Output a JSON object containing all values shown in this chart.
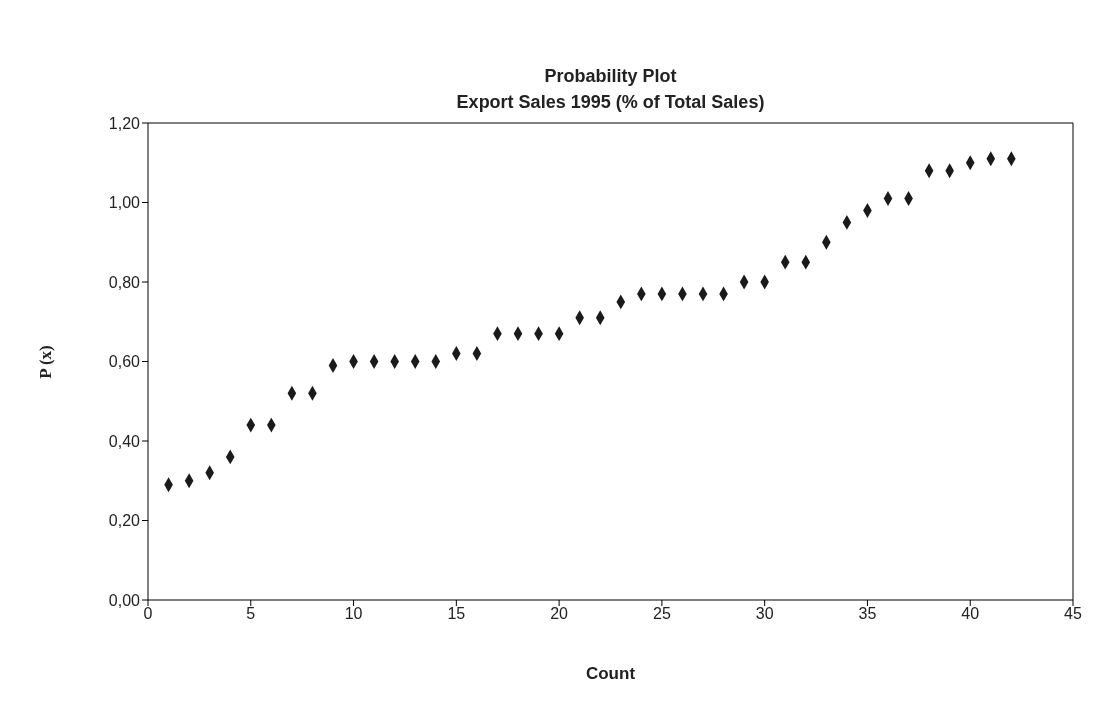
{
  "chart_data": {
    "type": "scatter",
    "title": "Probability Plot",
    "subtitle": "Export Sales 1995 (% of Total Sales)",
    "xlabel": "Count",
    "ylabel": "P (x)",
    "x": [
      1,
      2,
      3,
      4,
      5,
      6,
      7,
      8,
      9,
      10,
      11,
      12,
      13,
      14,
      15,
      16,
      17,
      18,
      19,
      20,
      21,
      22,
      23,
      24,
      25,
      26,
      27,
      28,
      29,
      30,
      31,
      32,
      33,
      34,
      35,
      36,
      37,
      38,
      39,
      40,
      41,
      42
    ],
    "series": [
      {
        "color": "#1a1a1a",
        "values": [
          0.29,
          0.3,
          0.32,
          0.36,
          0.44,
          0.44,
          0.52,
          0.52,
          0.59,
          0.6,
          0.6,
          0.6,
          0.6,
          0.6,
          0.62,
          0.62,
          0.67,
          0.67,
          0.67,
          0.67,
          0.71,
          0.71,
          0.75,
          0.77,
          0.77,
          0.77,
          0.77,
          0.77,
          0.8,
          0.8,
          0.85,
          0.85,
          0.9,
          0.95,
          0.98,
          1.01,
          1.01,
          1.08,
          1.08,
          1.1,
          1.11,
          1.11
        ]
      }
    ],
    "xlim": [
      0,
      45
    ],
    "xticks": [
      0,
      5,
      10,
      15,
      20,
      25,
      30,
      35,
      40,
      45
    ],
    "ylim": [
      0,
      1.2
    ],
    "yticks": [
      {
        "value": 0,
        "label": "0,00"
      },
      {
        "value": 0.2,
        "label": "0,20"
      },
      {
        "value": 0.4,
        "label": "0,40"
      },
      {
        "value": 0.6,
        "label": "0,60"
      },
      {
        "value": 0.8,
        "label": "0,80"
      },
      {
        "value": 1.0,
        "label": "1,00"
      },
      {
        "value": 1.2,
        "label": "1,20"
      }
    ],
    "grid": false,
    "legend": false,
    "marker": "diamond"
  }
}
